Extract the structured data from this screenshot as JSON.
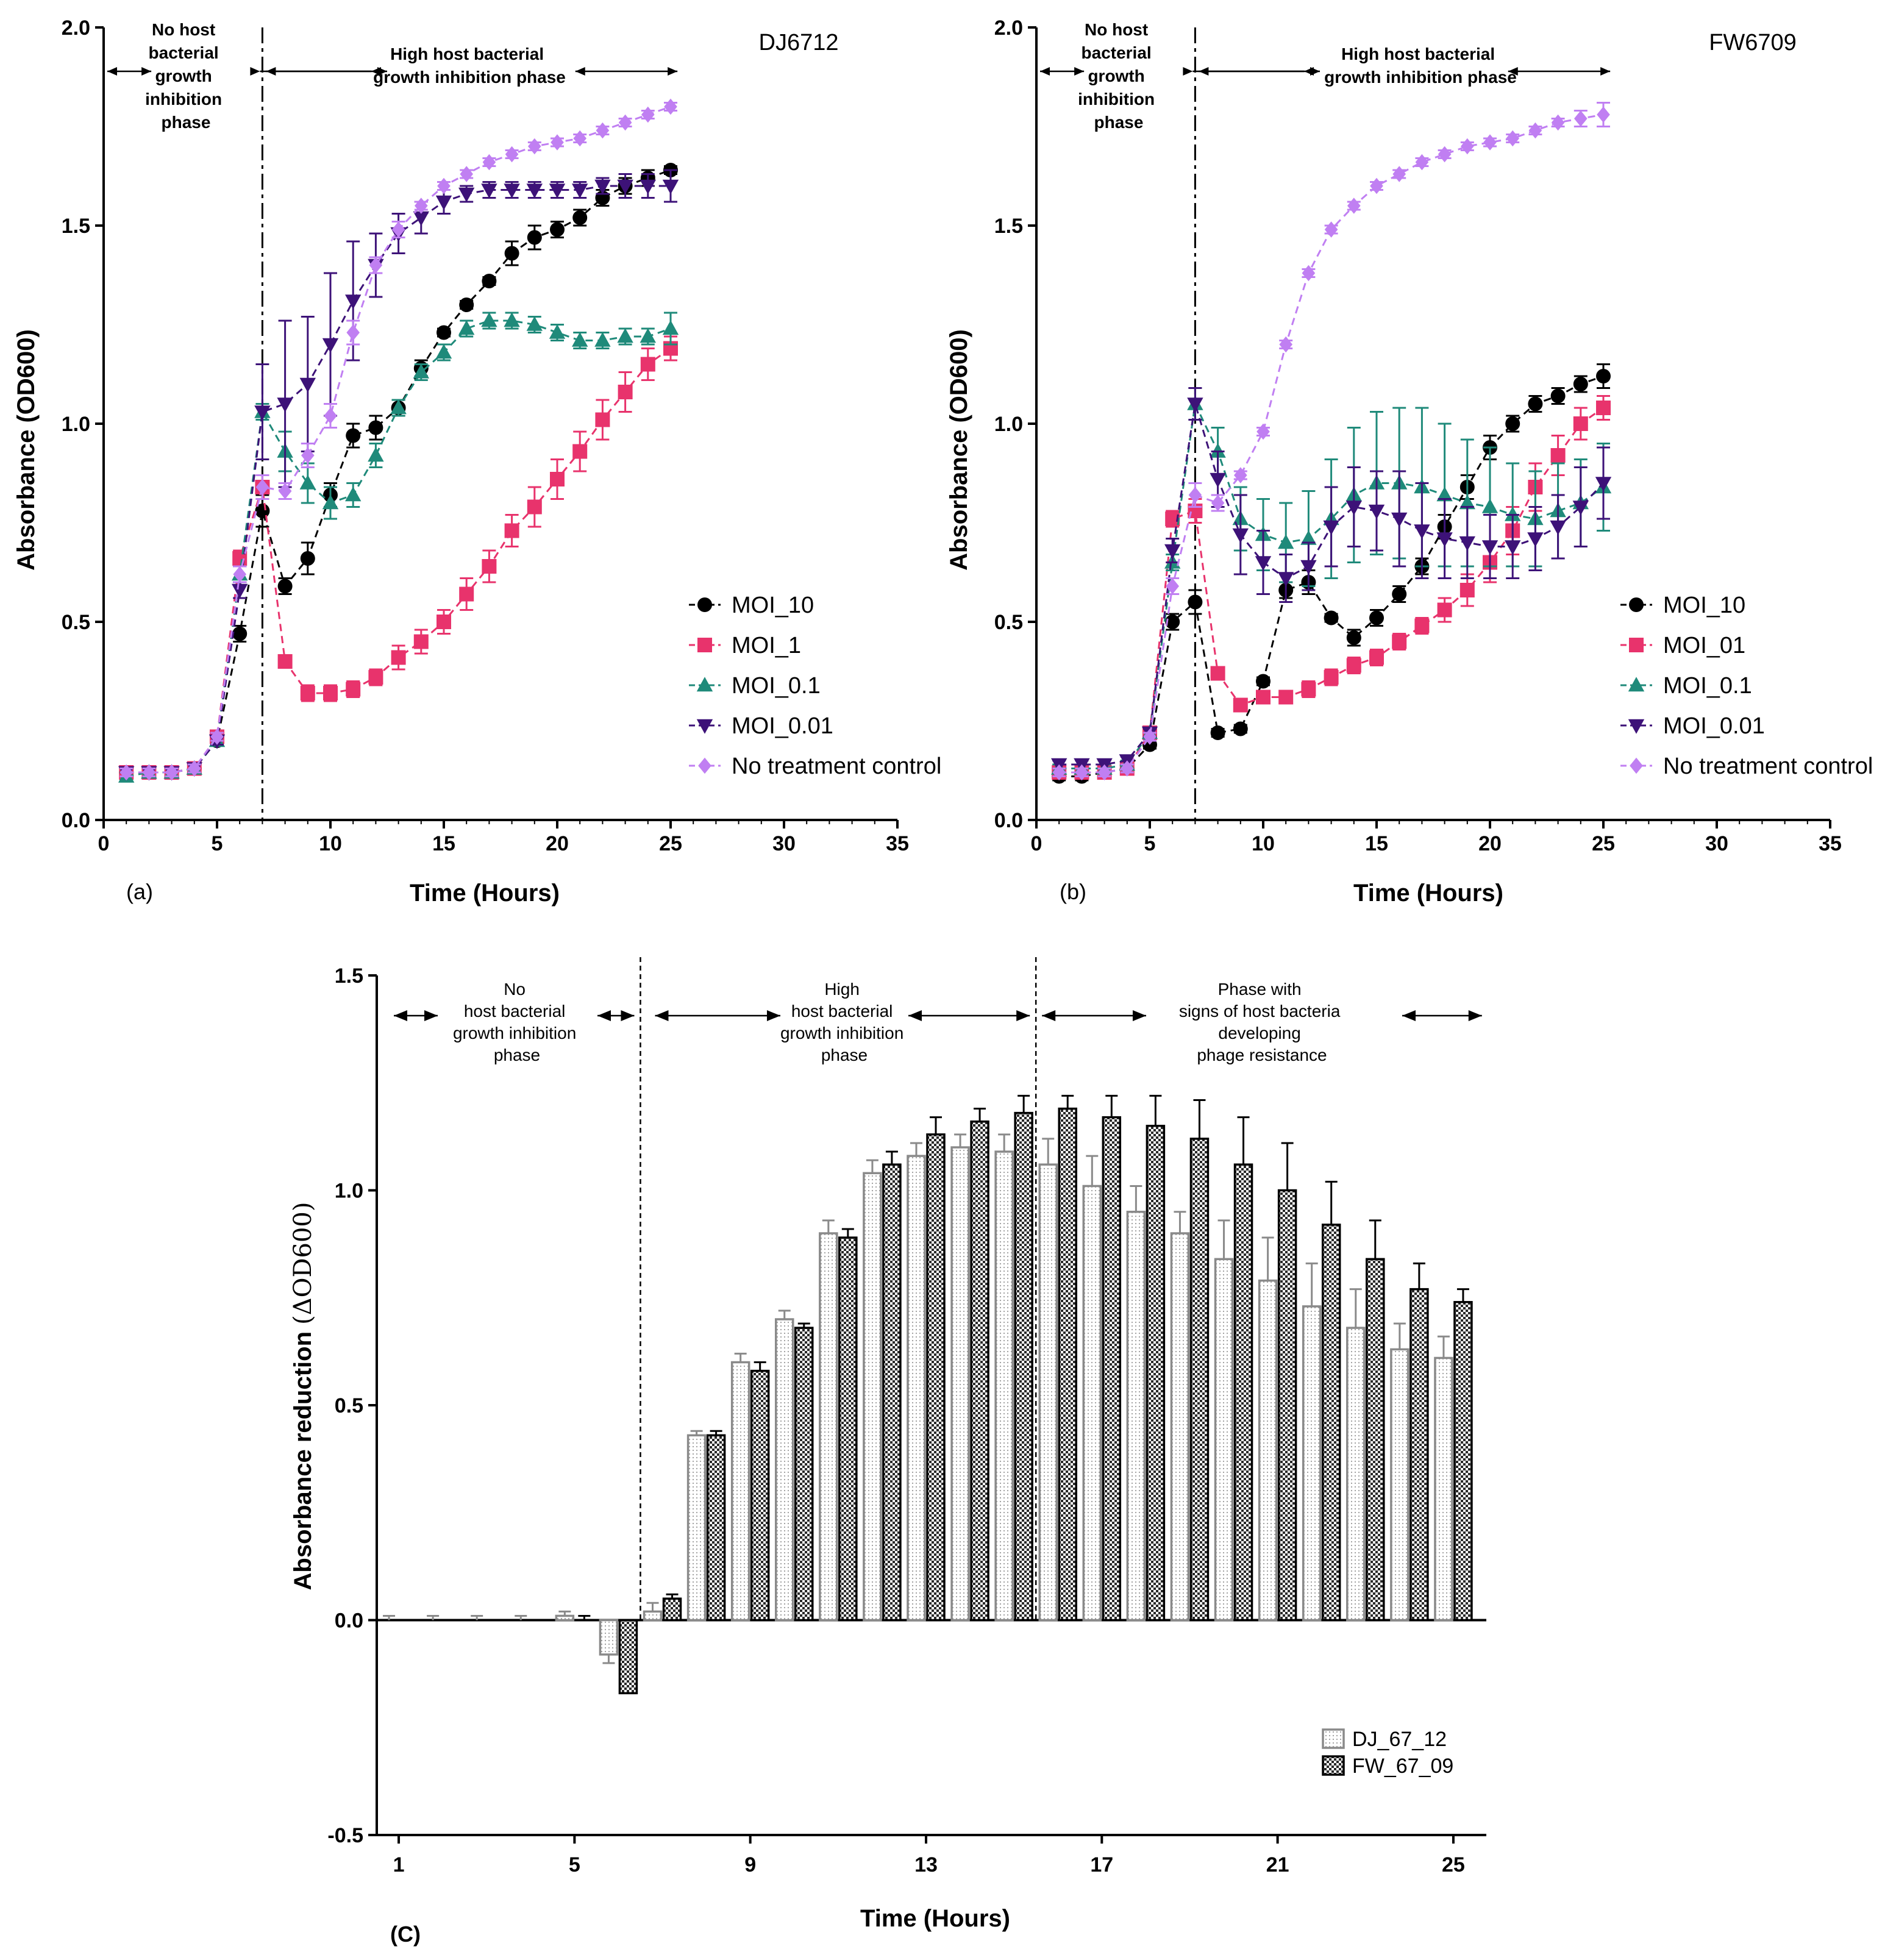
{
  "panels": {
    "a": {
      "label": "(a)",
      "strain": "DJ6712",
      "phase1": [
        "No host",
        "bacterial",
        "growth",
        "inhibition",
        "phase"
      ],
      "phase2": [
        "High host bacterial",
        "growth inhibition phase"
      ]
    },
    "b": {
      "label": "(b)",
      "strain": "FW6709",
      "phase1": [
        "No host",
        "bacterial",
        "growth",
        "inhibition",
        "phase"
      ],
      "phase2": [
        "High host bacterial",
        "growth inhibition phase"
      ]
    },
    "c": {
      "label": "(C)",
      "phase1": [
        "No",
        "host bacterial",
        "growth inhibition",
        "phase"
      ],
      "phase2": [
        "High",
        "host bacterial",
        "growth inhibition",
        "phase"
      ],
      "phase3": [
        "Phase with",
        "signs of host bacteria",
        "developing",
        "phage resistance"
      ]
    }
  },
  "colors": {
    "MOI_10": "#000000",
    "MOI_1": "#e8336c",
    "MOI_0.1": "#1f8a7a",
    "MOI_0.01": "#3d1278",
    "control": "#c07ff2"
  },
  "chart_data": [
    {
      "id": "a",
      "type": "line",
      "title": "DJ6712",
      "xlabel": "Time (Hours)",
      "ylabel": "Absorbance (OD600)",
      "xlim": [
        0,
        35
      ],
      "ylim": [
        0,
        2.0
      ],
      "xticks": [
        0,
        5,
        10,
        15,
        20,
        25,
        30,
        35
      ],
      "yticks": [
        0.0,
        0.5,
        1.0,
        1.5,
        2.0
      ],
      "divider_x": 7,
      "legend_position": "right",
      "x": [
        1,
        2,
        3,
        4,
        5,
        6,
        7,
        8,
        9,
        10,
        11,
        12,
        13,
        14,
        15,
        16,
        17,
        18,
        19,
        20,
        21,
        22,
        23,
        24,
        25
      ],
      "series": [
        {
          "name": "MOI_10",
          "marker": "circle",
          "color": "#000000",
          "values": [
            0.12,
            0.12,
            0.12,
            0.13,
            0.2,
            0.47,
            0.78,
            0.59,
            0.66,
            0.82,
            0.97,
            0.99,
            1.04,
            1.14,
            1.23,
            1.3,
            1.36,
            1.43,
            1.47,
            1.49,
            1.52,
            1.57,
            1.6,
            1.62,
            1.64
          ],
          "errors": [
            0.01,
            0.01,
            0.01,
            0.01,
            0.01,
            0.02,
            0.04,
            0.02,
            0.04,
            0.03,
            0.03,
            0.03,
            0.02,
            0.02,
            0.01,
            0.01,
            0.01,
            0.03,
            0.03,
            0.02,
            0.02,
            0.02,
            0.02,
            0.02,
            0.01
          ]
        },
        {
          "name": "MOI_1",
          "marker": "square",
          "color": "#e8336c",
          "values": [
            0.12,
            0.12,
            0.12,
            0.13,
            0.21,
            0.66,
            0.84,
            0.4,
            0.32,
            0.32,
            0.33,
            0.36,
            0.41,
            0.45,
            0.5,
            0.57,
            0.64,
            0.73,
            0.79,
            0.86,
            0.93,
            1.01,
            1.08,
            1.15,
            1.19
          ],
          "errors": [
            0.01,
            0.01,
            0.01,
            0.01,
            0.01,
            0.02,
            0.03,
            0.01,
            0.02,
            0.02,
            0.02,
            0.02,
            0.03,
            0.03,
            0.03,
            0.04,
            0.04,
            0.04,
            0.05,
            0.05,
            0.05,
            0.05,
            0.05,
            0.04,
            0.03
          ]
        },
        {
          "name": "MOI_0.1",
          "marker": "triangle-up",
          "color": "#1f8a7a",
          "values": [
            0.11,
            0.12,
            0.12,
            0.13,
            0.2,
            0.62,
            1.03,
            0.93,
            0.85,
            0.8,
            0.82,
            0.92,
            1.04,
            1.13,
            1.18,
            1.24,
            1.26,
            1.26,
            1.25,
            1.23,
            1.21,
            1.21,
            1.22,
            1.22,
            1.24
          ],
          "errors": [
            0.01,
            0.01,
            0.01,
            0.01,
            0.01,
            0.02,
            0.02,
            0.05,
            0.05,
            0.04,
            0.03,
            0.03,
            0.02,
            0.02,
            0.02,
            0.02,
            0.02,
            0.02,
            0.02,
            0.02,
            0.02,
            0.02,
            0.02,
            0.02,
            0.04
          ]
        },
        {
          "name": "MOI_0.01",
          "marker": "triangle-down",
          "color": "#3d1278",
          "values": [
            0.12,
            0.12,
            0.12,
            0.13,
            0.2,
            0.58,
            1.03,
            1.05,
            1.1,
            1.2,
            1.31,
            1.4,
            1.48,
            1.52,
            1.56,
            1.58,
            1.59,
            1.59,
            1.59,
            1.59,
            1.59,
            1.6,
            1.6,
            1.6,
            1.6
          ],
          "errors": [
            0.01,
            0.01,
            0.01,
            0.01,
            0.01,
            0.02,
            0.12,
            0.21,
            0.17,
            0.18,
            0.15,
            0.08,
            0.05,
            0.04,
            0.03,
            0.02,
            0.02,
            0.02,
            0.02,
            0.02,
            0.02,
            0.02,
            0.03,
            0.03,
            0.04
          ]
        },
        {
          "name": "No treatment control",
          "marker": "diamond",
          "color": "#c07ff2",
          "values": [
            0.12,
            0.12,
            0.12,
            0.13,
            0.21,
            0.62,
            0.84,
            0.83,
            0.92,
            1.02,
            1.23,
            1.4,
            1.49,
            1.55,
            1.6,
            1.63,
            1.66,
            1.68,
            1.7,
            1.71,
            1.72,
            1.74,
            1.76,
            1.78,
            1.8
          ],
          "errors": [
            0.01,
            0.01,
            0.01,
            0.01,
            0.01,
            0.02,
            0.03,
            0.02,
            0.03,
            0.03,
            0.03,
            0.02,
            0.02,
            0.01,
            0.01,
            0.01,
            0.01,
            0.01,
            0.01,
            0.01,
            0.01,
            0.01,
            0.01,
            0.01,
            0.01
          ]
        }
      ]
    },
    {
      "id": "b",
      "type": "line",
      "title": "FW6709",
      "xlabel": "Time (Hours)",
      "ylabel": "Absorbance (OD600)",
      "xlim": [
        0,
        35
      ],
      "ylim": [
        0,
        2.0
      ],
      "xticks": [
        0,
        5,
        10,
        15,
        20,
        25,
        30,
        35
      ],
      "yticks": [
        0.0,
        0.5,
        1.0,
        1.5,
        2.0
      ],
      "divider_x": 7,
      "legend_position": "right",
      "x": [
        1,
        2,
        3,
        4,
        5,
        6,
        7,
        8,
        9,
        10,
        11,
        12,
        13,
        14,
        15,
        16,
        17,
        18,
        19,
        20,
        21,
        22,
        23,
        24,
        25
      ],
      "series": [
        {
          "name": "MOI_10",
          "marker": "circle",
          "color": "#000000",
          "values": [
            0.11,
            0.11,
            0.12,
            0.13,
            0.19,
            0.5,
            0.55,
            0.22,
            0.23,
            0.35,
            0.58,
            0.6,
            0.51,
            0.46,
            0.51,
            0.57,
            0.64,
            0.74,
            0.84,
            0.94,
            1.0,
            1.05,
            1.07,
            1.1,
            1.12
          ],
          "errors": [
            0.01,
            0.01,
            0.01,
            0.01,
            0.01,
            0.02,
            0.03,
            0.01,
            0.01,
            0.01,
            0.02,
            0.03,
            0.01,
            0.02,
            0.02,
            0.02,
            0.02,
            0.03,
            0.03,
            0.03,
            0.02,
            0.02,
            0.02,
            0.02,
            0.03
          ]
        },
        {
          "name": "MOI_01",
          "marker": "square",
          "color": "#e8336c",
          "values": [
            0.12,
            0.12,
            0.12,
            0.13,
            0.22,
            0.76,
            0.78,
            0.37,
            0.29,
            0.31,
            0.31,
            0.33,
            0.36,
            0.39,
            0.41,
            0.45,
            0.49,
            0.53,
            0.58,
            0.65,
            0.73,
            0.84,
            0.92,
            1.0,
            1.04
          ],
          "errors": [
            0.01,
            0.01,
            0.01,
            0.01,
            0.01,
            0.02,
            0.03,
            0.01,
            0.01,
            0.01,
            0.01,
            0.02,
            0.02,
            0.02,
            0.02,
            0.02,
            0.02,
            0.03,
            0.04,
            0.05,
            0.06,
            0.06,
            0.05,
            0.04,
            0.03
          ]
        },
        {
          "name": "MOI_0.1",
          "marker": "triangle-up",
          "color": "#1f8a7a",
          "values": [
            0.13,
            0.13,
            0.13,
            0.14,
            0.22,
            0.65,
            1.05,
            0.93,
            0.76,
            0.72,
            0.7,
            0.71,
            0.76,
            0.82,
            0.85,
            0.85,
            0.84,
            0.82,
            0.8,
            0.79,
            0.77,
            0.76,
            0.78,
            0.8,
            0.84
          ],
          "errors": [
            0.01,
            0.01,
            0.01,
            0.01,
            0.01,
            0.02,
            0.04,
            0.06,
            0.08,
            0.09,
            0.1,
            0.12,
            0.15,
            0.17,
            0.18,
            0.19,
            0.2,
            0.18,
            0.16,
            0.15,
            0.13,
            0.12,
            0.12,
            0.11,
            0.11
          ]
        },
        {
          "name": "MOI_0.01",
          "marker": "triangle-down",
          "color": "#3d1278",
          "values": [
            0.14,
            0.14,
            0.14,
            0.15,
            0.22,
            0.68,
            1.05,
            0.86,
            0.72,
            0.65,
            0.61,
            0.64,
            0.74,
            0.79,
            0.78,
            0.76,
            0.73,
            0.71,
            0.7,
            0.69,
            0.69,
            0.71,
            0.74,
            0.79,
            0.85
          ],
          "errors": [
            0.01,
            0.01,
            0.01,
            0.01,
            0.01,
            0.03,
            0.04,
            0.07,
            0.1,
            0.08,
            0.06,
            0.06,
            0.1,
            0.1,
            0.1,
            0.12,
            0.12,
            0.1,
            0.09,
            0.08,
            0.08,
            0.08,
            0.08,
            0.1,
            0.09
          ]
        },
        {
          "name": "No treatment control",
          "marker": "diamond",
          "color": "#c07ff2",
          "values": [
            0.12,
            0.12,
            0.12,
            0.13,
            0.21,
            0.59,
            0.82,
            0.8,
            0.87,
            0.98,
            1.2,
            1.38,
            1.49,
            1.55,
            1.6,
            1.63,
            1.66,
            1.68,
            1.7,
            1.71,
            1.72,
            1.74,
            1.76,
            1.77,
            1.78
          ],
          "errors": [
            0.01,
            0.01,
            0.01,
            0.01,
            0.01,
            0.02,
            0.03,
            0.02,
            0.01,
            0.01,
            0.01,
            0.01,
            0.01,
            0.01,
            0.01,
            0.01,
            0.01,
            0.01,
            0.01,
            0.01,
            0.01,
            0.01,
            0.01,
            0.02,
            0.03
          ]
        }
      ]
    },
    {
      "id": "c",
      "type": "bar",
      "xlabel": "Time (Hours)",
      "ylabel_main": "Absorbance reduction",
      "ylabel_delta": "(ΔOD600)",
      "ylim": [
        -0.5,
        1.5
      ],
      "yticks": [
        -0.5,
        0.0,
        0.5,
        1.0,
        1.5
      ],
      "xlim": [
        0.5,
        25.75
      ],
      "xticks": [
        1,
        5,
        9,
        13,
        17,
        21,
        25
      ],
      "dividers": [
        6.5,
        15.5
      ],
      "legend_position": "bottom-right",
      "categories": [
        1,
        2,
        3,
        4,
        5,
        6,
        7,
        8,
        9,
        10,
        11,
        12,
        13,
        14,
        15,
        16,
        17,
        18,
        19,
        20,
        21,
        22,
        23,
        24,
        25
      ],
      "series": [
        {
          "name": "DJ_67_12",
          "pattern": "dots",
          "values": [
            0.0,
            0.0,
            0.0,
            0.0,
            0.01,
            -0.08,
            0.02,
            0.43,
            0.6,
            0.7,
            0.9,
            1.04,
            1.08,
            1.1,
            1.09,
            1.06,
            1.01,
            0.95,
            0.9,
            0.84,
            0.79,
            0.73,
            0.68,
            0.63,
            0.61
          ],
          "errors": [
            0.01,
            0.01,
            0.01,
            0.01,
            0.01,
            0.02,
            0.02,
            0.01,
            0.02,
            0.02,
            0.03,
            0.03,
            0.03,
            0.03,
            0.04,
            0.06,
            0.07,
            0.06,
            0.05,
            0.09,
            0.1,
            0.1,
            0.09,
            0.06,
            0.05
          ]
        },
        {
          "name": "FW_67_09",
          "pattern": "checker",
          "values": [
            0.0,
            0.0,
            0.0,
            0.0,
            0.0,
            -0.17,
            0.05,
            0.43,
            0.58,
            0.68,
            0.89,
            1.06,
            1.13,
            1.16,
            1.18,
            1.19,
            1.17,
            1.15,
            1.12,
            1.06,
            1.0,
            0.92,
            0.84,
            0.77,
            0.74
          ],
          "errors": [
            0.0,
            0.0,
            0.0,
            0.0,
            0.01,
            0.0,
            0.01,
            0.01,
            0.02,
            0.01,
            0.02,
            0.03,
            0.04,
            0.03,
            0.04,
            0.03,
            0.05,
            0.07,
            0.09,
            0.11,
            0.11,
            0.1,
            0.09,
            0.06,
            0.03
          ]
        }
      ]
    }
  ]
}
